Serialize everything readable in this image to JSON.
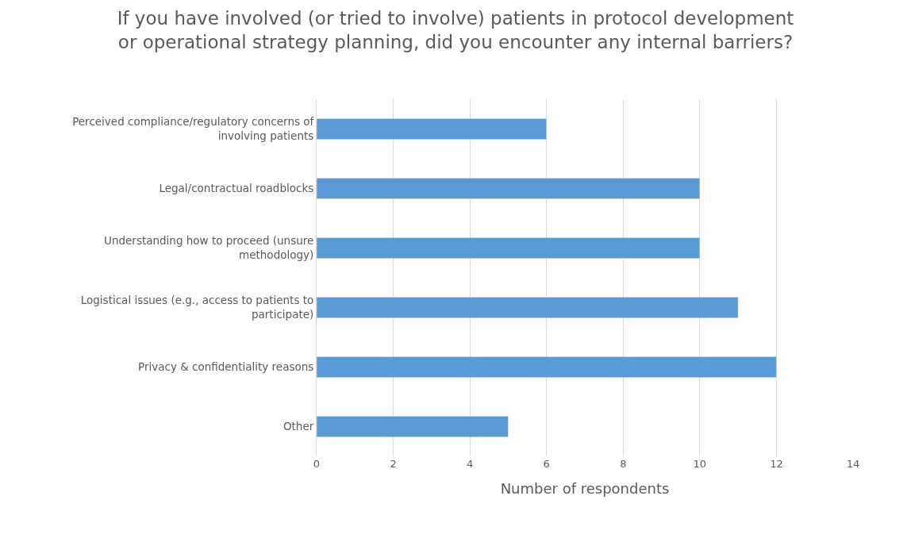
{
  "chart_data": {
    "type": "bar",
    "orientation": "horizontal",
    "title": "If you have involved (or tried to involve) patients in protocol development\nor operational strategy planning, did you encounter any internal barriers?",
    "xlabel": "Number of respondents",
    "categories": [
      "Perceived compliance/regulatory concerns of involving patients",
      "Legal/contractual roadblocks",
      "Understanding how to proceed (unsure methodology)",
      "Logistical issues (e.g., access to patients to participate)",
      "Privacy & confidentiality reasons",
      "Other"
    ],
    "values": [
      6,
      10,
      10,
      11,
      12,
      5
    ],
    "color": "#5b9bd5",
    "xlim": [
      0,
      14
    ],
    "xticks": [
      0,
      2,
      4,
      6,
      8,
      10,
      12,
      14
    ],
    "grid": "x"
  }
}
